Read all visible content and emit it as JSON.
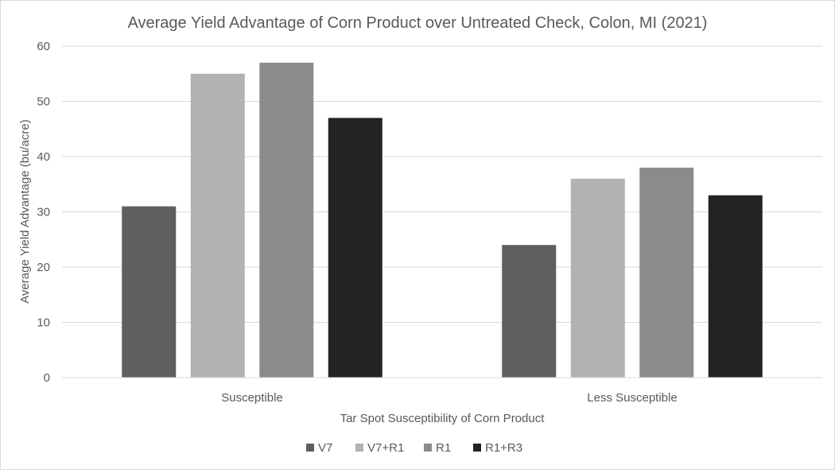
{
  "chart_data": {
    "type": "bar",
    "title": "Average Yield Advantage of Corn Product over Untreated Check, Colon, MI (2021)",
    "xlabel": "Tar Spot Susceptibility of Corn Product",
    "ylabel": "Average Yield Advantage (bu/acre)",
    "categories": [
      "Susceptible",
      "Less Susceptible"
    ],
    "ylim": [
      0,
      60
    ],
    "yticks": [
      0,
      10,
      20,
      30,
      40,
      50,
      60
    ],
    "grid": true,
    "legend_position": "bottom",
    "series": [
      {
        "name": "V7",
        "values": [
          31,
          24
        ],
        "color": "#5f5f5f"
      },
      {
        "name": "V7+R1",
        "values": [
          55,
          36
        ],
        "color": "#b2b2b2"
      },
      {
        "name": "R1",
        "values": [
          57,
          38
        ],
        "color": "#8b8b8b"
      },
      {
        "name": "R1+R3",
        "values": [
          47,
          33
        ],
        "color": "#232323"
      }
    ]
  }
}
